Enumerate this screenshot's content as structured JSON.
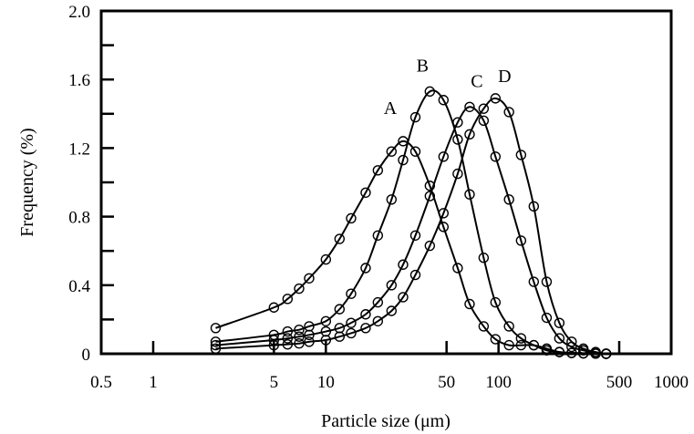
{
  "chart_data": {
    "type": "line",
    "title": "",
    "xlabel": "Particle size (μm)",
    "ylabel": "Frequency (%)",
    "x_scale": "log",
    "xlim": [
      0.5,
      1000
    ],
    "ylim": [
      0,
      2.0
    ],
    "grid": false,
    "x_ticks": [
      0.5,
      1,
      5,
      10,
      50,
      100,
      500,
      1000
    ],
    "x_tick_labels": [
      "0.5",
      "1",
      "5",
      "10",
      "50",
      "100",
      "500",
      "1000"
    ],
    "y_ticks": [
      0,
      0.4,
      0.8,
      1.2,
      1.6,
      2.0
    ],
    "y_tick_labels": [
      "0",
      "0.4",
      "0.8",
      "1.2",
      "1.6",
      "2.0"
    ],
    "y_minor_ticks": [
      0.2,
      0.6,
      1.0,
      1.4,
      1.8
    ],
    "marker": "open-circle",
    "line_color": "#000000",
    "x": [
      2.3,
      5,
      6,
      7,
      8,
      10,
      12,
      14,
      17,
      20,
      24,
      28,
      33,
      40,
      48,
      58,
      68,
      82,
      96,
      115,
      135,
      160,
      190,
      225,
      265,
      310,
      365,
      420
    ],
    "series": [
      {
        "name": "A",
        "values": [
          0.15,
          0.27,
          0.32,
          0.38,
          0.44,
          0.55,
          0.67,
          0.79,
          0.94,
          1.07,
          1.18,
          1.24,
          1.18,
          0.98,
          0.74,
          0.5,
          0.29,
          0.16,
          0.085,
          0.05,
          0.05,
          0.05,
          0.03,
          0.01,
          0.005,
          0.003,
          0.001,
          0
        ]
      },
      {
        "name": "B",
        "values": [
          0.07,
          0.11,
          0.13,
          0.14,
          0.16,
          0.19,
          0.26,
          0.35,
          0.5,
          0.69,
          0.9,
          1.13,
          1.38,
          1.53,
          1.48,
          1.25,
          0.93,
          0.56,
          0.3,
          0.16,
          0.09,
          0.05,
          0.02,
          0.01,
          0.005,
          0.002,
          0.001,
          0
        ]
      },
      {
        "name": "C",
        "values": [
          0.05,
          0.08,
          0.09,
          0.1,
          0.11,
          0.13,
          0.15,
          0.18,
          0.23,
          0.3,
          0.4,
          0.52,
          0.69,
          0.92,
          1.15,
          1.35,
          1.44,
          1.36,
          1.15,
          0.9,
          0.66,
          0.42,
          0.21,
          0.09,
          0.04,
          0.02,
          0.005,
          0
        ]
      },
      {
        "name": "D",
        "values": [
          0.03,
          0.05,
          0.055,
          0.06,
          0.07,
          0.08,
          0.1,
          0.12,
          0.15,
          0.19,
          0.25,
          0.33,
          0.46,
          0.63,
          0.82,
          1.05,
          1.28,
          1.43,
          1.49,
          1.41,
          1.16,
          0.86,
          0.42,
          0.18,
          0.07,
          0.03,
          0.01,
          0
        ]
      }
    ]
  }
}
